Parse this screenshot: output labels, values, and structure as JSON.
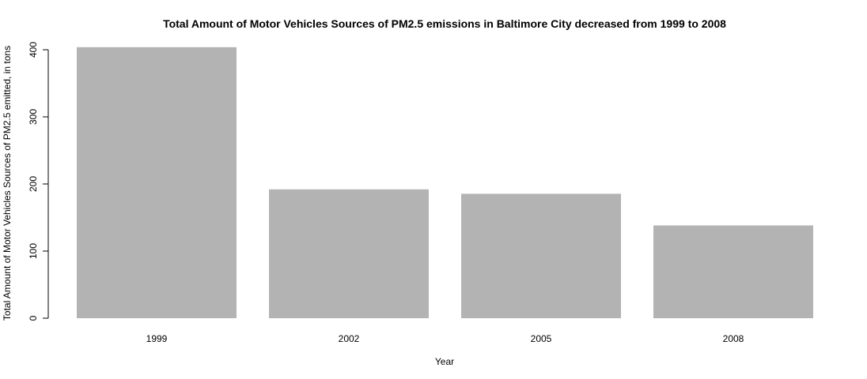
{
  "chart_data": {
    "type": "bar",
    "title": "Total Amount of Motor Vehicles Sources of PM2.5 emissions in Baltimore City decreased from 1999 to 2008",
    "xlabel": "Year",
    "ylabel": "Total Amount of Motor Vehicles Sources of PM2.5 emitted, in tons",
    "categories": [
      "1999",
      "2002",
      "2005",
      "2008"
    ],
    "values": [
      403.8,
      192.0,
      185.4,
      138.2
    ],
    "ylim": [
      0,
      400
    ],
    "yticks": [
      "0",
      "100",
      "200",
      "300",
      "400"
    ],
    "bar_color": "#b3b3b3",
    "grid": false,
    "legend": "none"
  }
}
